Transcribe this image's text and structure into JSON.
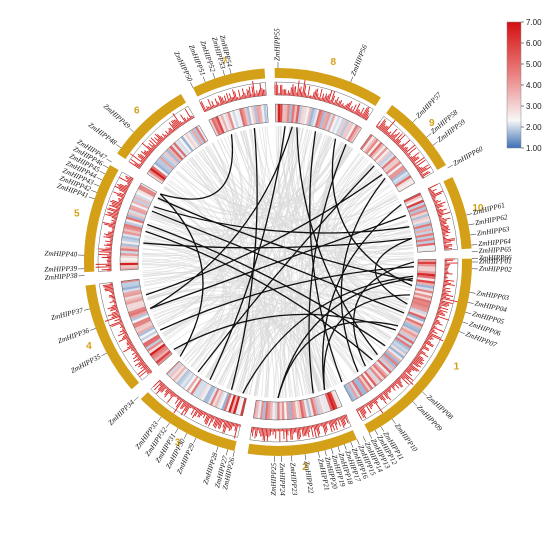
{
  "colors": {
    "chromosome": "#d4a017",
    "histogram": "#d62020",
    "segdup_link": "#111111",
    "synteny_bg": "#d9d9d9",
    "heat_low": "#3b6fb6",
    "heat_mid": "#f5f5f5",
    "heat_high": "#d62020"
  },
  "color_scale": {
    "ticks": [
      "7.00",
      "6.00",
      "5.00",
      "4.00",
      "3.00",
      "2.00",
      "1.00"
    ]
  },
  "chromosomes": [
    {
      "label": "1",
      "start": 89,
      "end": 152
    },
    {
      "label": "2",
      "start": 156,
      "end": 189
    },
    {
      "label": "3",
      "start": 193,
      "end": 225
    },
    {
      "label": "4",
      "start": 229,
      "end": 263
    },
    {
      "label": "5",
      "start": 267,
      "end": 300
    },
    {
      "label": "6",
      "start": 304,
      "end": 330
    },
    {
      "label": "7",
      "start": 334,
      "end": 356
    },
    {
      "label": "8",
      "start": 359,
      "end": 392
    },
    {
      "label": "9",
      "start": 396,
      "end": 420
    },
    {
      "label": "10",
      "start": 424,
      "end": 446
    }
  ],
  "genes": [
    {
      "name": "ZmHIPP01",
      "angle": 90
    },
    {
      "name": "ZmHIPP02",
      "angle": 92
    },
    {
      "name": "ZmHIPP03",
      "angle": 99
    },
    {
      "name": "ZmHIPP04",
      "angle": 102
    },
    {
      "name": "ZmHIPP05",
      "angle": 105
    },
    {
      "name": "ZmHIPP06",
      "angle": 108
    },
    {
      "name": "ZmHIPP07",
      "angle": 111
    },
    {
      "name": "ZmHIPP08",
      "angle": 132
    },
    {
      "name": "ZmHIPP09",
      "angle": 136
    },
    {
      "name": "ZmHIPP10",
      "angle": 144
    },
    {
      "name": "ZmHIPP11",
      "angle": 148
    },
    {
      "name": "ZmHIPP12",
      "angle": 150
    },
    {
      "name": "ZmHIPP13",
      "angle": 152
    },
    {
      "name": "ZmHIPP14",
      "angle": 154
    },
    {
      "name": "ZmHIPP15",
      "angle": 156
    },
    {
      "name": "ZmHIPP16",
      "angle": 158
    },
    {
      "name": "ZmHIPP17",
      "angle": 160
    },
    {
      "name": "ZmHIPP18",
      "angle": 162
    },
    {
      "name": "ZmHIPP19",
      "angle": 164
    },
    {
      "name": "ZmHIPP20",
      "angle": 166
    },
    {
      "name": "ZmHIPP21",
      "angle": 168
    },
    {
      "name": "ZmHIPP22",
      "angle": 172
    },
    {
      "name": "ZmHIPP23",
      "angle": 176
    },
    {
      "name": "ZmHIPP24",
      "angle": 179
    },
    {
      "name": "ZmHIPP25",
      "angle": 181
    },
    {
      "name": "ZmHIPP26",
      "angle": 193
    },
    {
      "name": "ZmHIPP27",
      "angle": 195
    },
    {
      "name": "ZmHIPP28",
      "angle": 198
    },
    {
      "name": "ZmHIPP29",
      "angle": 205
    },
    {
      "name": "ZmHIPP30",
      "angle": 208
    },
    {
      "name": "ZmHIPP31",
      "angle": 211
    },
    {
      "name": "ZmHIPP32",
      "angle": 214
    },
    {
      "name": "ZmHIPP33",
      "angle": 217
    },
    {
      "name": "ZmHIPP34",
      "angle": 226
    },
    {
      "name": "ZmHIPP35",
      "angle": 242
    },
    {
      "name": "ZmHIPP36",
      "angle": 250
    },
    {
      "name": "ZmHIPP37",
      "angle": 256
    },
    {
      "name": "ZmHIPP38",
      "angle": 266
    },
    {
      "name": "ZmHIPP39",
      "angle": 268
    },
    {
      "name": "ZmHIPP40",
      "angle": 272
    },
    {
      "name": "ZmHIPP41",
      "angle": 289
    },
    {
      "name": "ZmHIPP42",
      "angle": 291
    },
    {
      "name": "ZmHIPP43",
      "angle": 293
    },
    {
      "name": "ZmHIPP44",
      "angle": 295
    },
    {
      "name": "ZmHIPP45",
      "angle": 297
    },
    {
      "name": "ZmHIPP46",
      "angle": 299
    },
    {
      "name": "ZmHIPP47",
      "angle": 301
    },
    {
      "name": "ZmHIPP48",
      "angle": 306
    },
    {
      "name": "ZmHIPP49",
      "angle": 312
    },
    {
      "name": "ZmHIPP50",
      "angle": 334
    },
    {
      "name": "ZmHIPP51",
      "angle": 338
    },
    {
      "name": "ZmHIPP52",
      "angle": 341
    },
    {
      "name": "ZmHIPP53",
      "angle": 344
    },
    {
      "name": "ZmHIPP54",
      "angle": 346
    },
    {
      "name": "ZmHIPP55",
      "angle": 360
    },
    {
      "name": "ZmHIPP56",
      "angle": 382
    },
    {
      "name": "ZmHIPP57",
      "angle": 404
    },
    {
      "name": "ZmHIPP58",
      "angle": 410
    },
    {
      "name": "ZmHIPP59",
      "angle": 413
    },
    {
      "name": "ZmHIPP60",
      "angle": 421
    },
    {
      "name": "ZmHIPP61",
      "angle": 436
    },
    {
      "name": "ZmHIPP62",
      "angle": 439
    },
    {
      "name": "ZmHIPP63",
      "angle": 442
    },
    {
      "name": "ZmHIPP64",
      "angle": 445
    },
    {
      "name": "ZmHIPP65",
      "angle": 447
    },
    {
      "name": "ZmHIPP66",
      "angle": 449
    }
  ],
  "links": [
    [
      363,
      210
    ],
    [
      366,
      250
    ],
    [
      368,
      133
    ],
    [
      376,
      152
    ],
    [
      385,
      100
    ],
    [
      390,
      165
    ],
    [
      292,
      112
    ],
    [
      286,
      128
    ],
    [
      283,
      136
    ],
    [
      294,
      435
    ],
    [
      278,
      440
    ],
    [
      298,
      98
    ],
    [
      240,
      92
    ],
    [
      216,
      405
    ],
    [
      195,
      96
    ],
    [
      180,
      97
    ],
    [
      160,
      425
    ],
    [
      144,
      412
    ],
    [
      108,
      440
    ],
    [
      104,
      160
    ],
    [
      230,
      120
    ],
    [
      226,
      300
    ],
    [
      340,
      300
    ],
    [
      140,
      90
    ],
    [
      118,
      180
    ],
    [
      256,
      410
    ],
    [
      430,
      250
    ],
    [
      350,
      200
    ]
  ]
}
